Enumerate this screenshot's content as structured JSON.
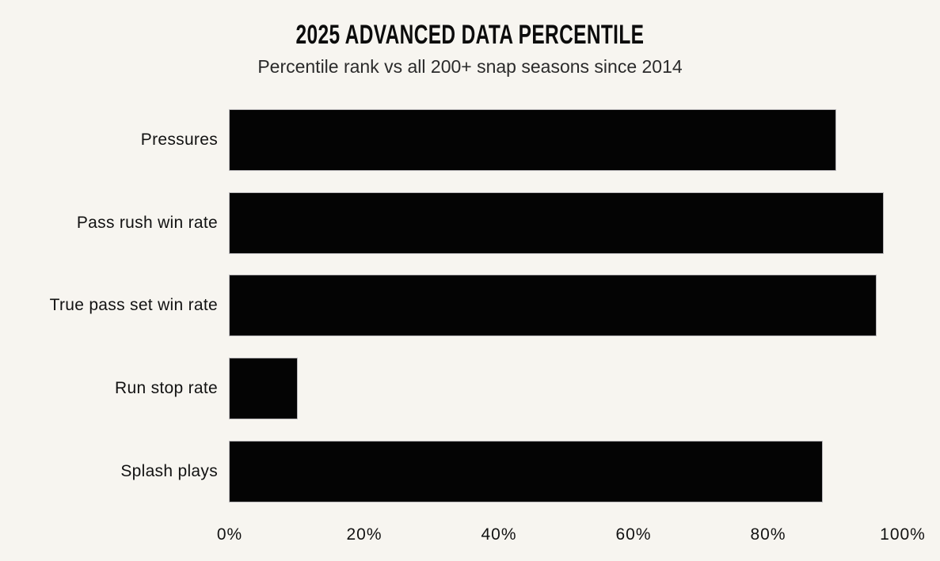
{
  "chart_data": {
    "type": "bar",
    "orientation": "horizontal",
    "title": "2025 ADVANCED DATA PERCENTILE",
    "subtitle": "Percentile rank vs all 200+ snap seasons since 2014",
    "categories": [
      "Pressures",
      "Pass rush win rate",
      "True pass set win rate",
      "Run stop rate",
      "Splash plays"
    ],
    "values": [
      90,
      97,
      96,
      10,
      88
    ],
    "unit": "%",
    "xlabel": "",
    "ylabel": "",
    "xlim": [
      0,
      100
    ],
    "x_ticks": [
      "0%",
      "20%",
      "40%",
      "60%",
      "80%",
      "100%"
    ],
    "x_tick_values": [
      0,
      20,
      40,
      60,
      80,
      100
    ],
    "grid": false,
    "legend": false,
    "bar_color": "#040404",
    "background_color": "#f7f5f0",
    "text_color": "#121212"
  }
}
